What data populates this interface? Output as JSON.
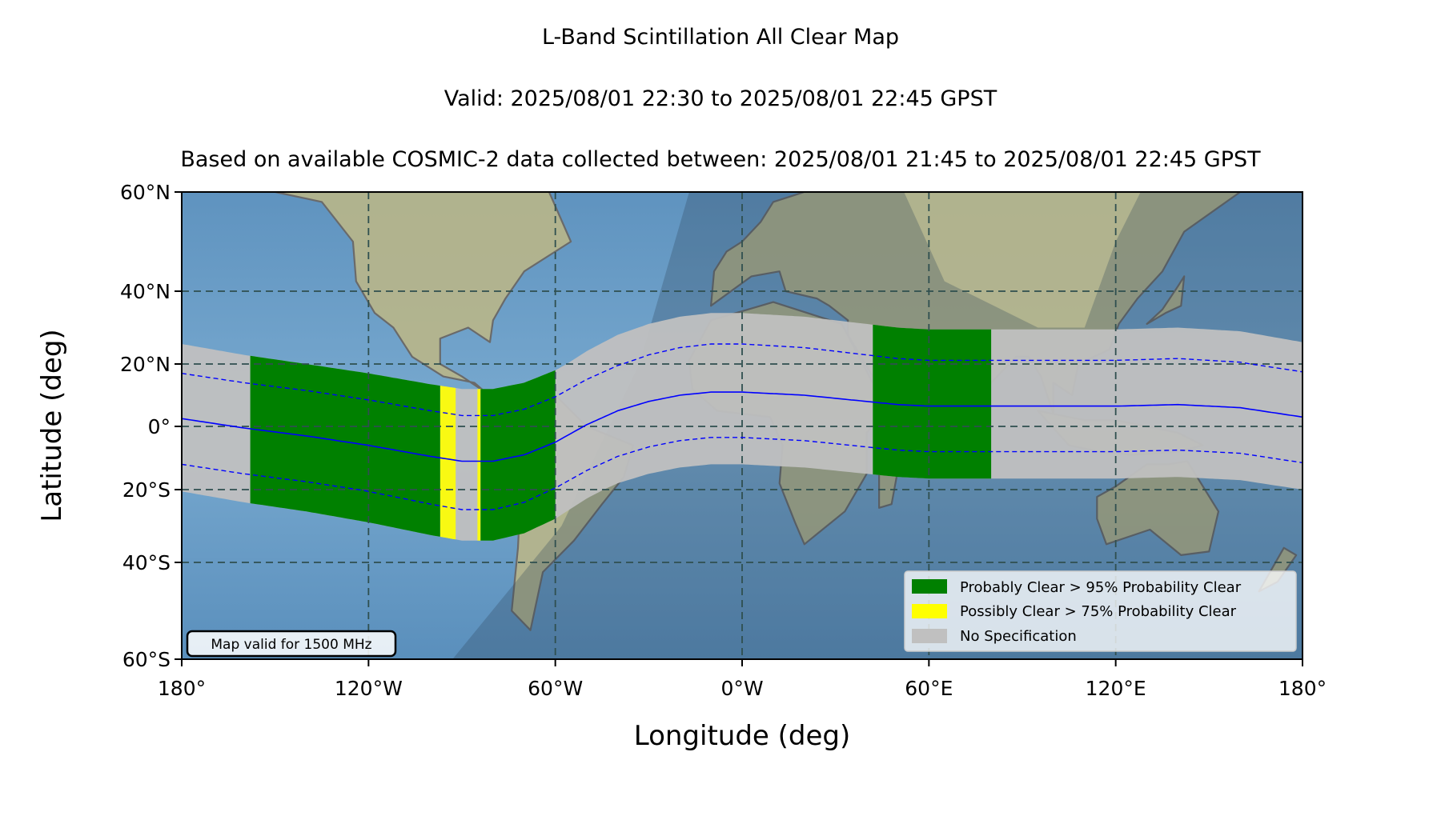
{
  "header": {
    "title": "L-Band Scintillation All Clear Map",
    "valid": "Valid: 2025/08/01 22:30 to 2025/08/01 22:45 GPST",
    "based_on": "Based on available COSMIC-2 data collected between: 2025/08/01 21:45 to 2025/08/01 22:45 GPST"
  },
  "axes": {
    "xlabel": "Longitude (deg)",
    "ylabel": "Latitude (deg)",
    "xticks": [
      {
        "lon": -180,
        "label": "180°"
      },
      {
        "lon": -120,
        "label": "120°W"
      },
      {
        "lon": -60,
        "label": "60°W"
      },
      {
        "lon": 0,
        "label": "0°W"
      },
      {
        "lon": 60,
        "label": "60°E"
      },
      {
        "lon": 120,
        "label": "120°E"
      },
      {
        "lon": 180,
        "label": "180°"
      }
    ],
    "yticks": [
      {
        "lat": 60,
        "label": "60°N"
      },
      {
        "lat": 40,
        "label": "40°N"
      },
      {
        "lat": 20,
        "label": "20°N"
      },
      {
        "lat": 0,
        "label": "0°"
      },
      {
        "lat": -20,
        "label": "20°S"
      },
      {
        "lat": -40,
        "label": "40°S"
      },
      {
        "lat": -60,
        "label": "60°S"
      }
    ]
  },
  "legend": {
    "items": [
      {
        "label": "Probably Clear > 95% Probability Clear",
        "color": "#008000"
      },
      {
        "label": "Possibly Clear > 75% Probability Clear",
        "color": "#ffff00"
      },
      {
        "label": "No Specification",
        "color": "#c0c0c0"
      }
    ]
  },
  "note": "Map valid for 1500 MHz",
  "colors": {
    "ocean": "#6f9fc4",
    "land": "#b7b58a",
    "nightside": "#2b4257",
    "band_gray": "#c0c0c0",
    "green": "#008000",
    "yellow": "#ffff00",
    "line": "#0000ff",
    "grid": "#2f4f4f"
  },
  "chart_data": {
    "type": "map",
    "xlim": [
      -180,
      180
    ],
    "ylim": [
      -60,
      60
    ],
    "grid": true,
    "legend_position": "bottom-right",
    "magnetic_equator": [
      [
        -180,
        2.5
      ],
      [
        -160,
        -0.5
      ],
      [
        -140,
        -3
      ],
      [
        -120,
        -6
      ],
      [
        -100,
        -9.5
      ],
      [
        -90,
        -11
      ],
      [
        -80,
        -11
      ],
      [
        -70,
        -9
      ],
      [
        -60,
        -5
      ],
      [
        -50,
        0.5
      ],
      [
        -40,
        5
      ],
      [
        -30,
        8
      ],
      [
        -20,
        10
      ],
      [
        -10,
        11
      ],
      [
        0,
        11
      ],
      [
        20,
        10
      ],
      [
        40,
        8
      ],
      [
        50,
        7
      ],
      [
        60,
        6.5
      ],
      [
        80,
        6.5
      ],
      [
        100,
        6.5
      ],
      [
        120,
        6.5
      ],
      [
        140,
        7
      ],
      [
        160,
        6
      ],
      [
        180,
        3
      ]
    ],
    "band_half_width_deg": 23,
    "dashed_offset_deg": 14.5,
    "probably_clear_regions": [
      {
        "lon_start": -158,
        "lon_end": -97
      },
      {
        "lon_start": -84,
        "lon_end": -60
      },
      {
        "lon_start": 42,
        "lon_end": 80
      }
    ],
    "possibly_clear_regions": [
      {
        "lon_start": -97,
        "lon_end": -92
      },
      {
        "lon_start": -85,
        "lon_end": -84
      }
    ]
  }
}
